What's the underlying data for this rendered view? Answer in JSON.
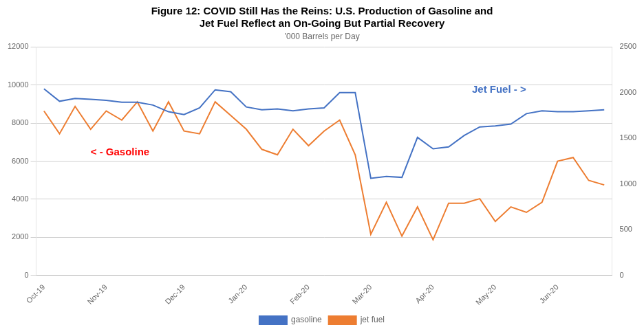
{
  "chart_data": {
    "type": "line",
    "title": [
      "Figure 12: COVID Still Has the Reins: U.S. Production of Gasoline and",
      "Jet Fuel Reflect an On-Going But Partial Recovery"
    ],
    "subtitle": "’000 Barrels per Day",
    "categories": [
      "Oct-19",
      null,
      null,
      null,
      "Nov-19",
      null,
      null,
      null,
      null,
      "Dec-19",
      null,
      null,
      null,
      "Jan-20",
      null,
      null,
      null,
      "Feb-20",
      null,
      null,
      null,
      "Mar-20",
      null,
      null,
      null,
      "Apr-20",
      null,
      null,
      null,
      "May-20",
      null,
      null,
      null,
      "Jun-20",
      null,
      null,
      null
    ],
    "series": [
      {
        "name": "gasoline",
        "color": "#4472C4",
        "values": [
          9800,
          9150,
          9300,
          9250,
          9200,
          9100,
          9100,
          8950,
          8600,
          8450,
          8800,
          9750,
          9650,
          8850,
          8700,
          8750,
          8650,
          8750,
          8800,
          9600,
          9600,
          5100,
          5200,
          5150,
          7250,
          6650,
          6750,
          7350,
          7800,
          7850,
          7950,
          8500,
          8650,
          8600,
          8600,
          8650,
          8700
        ]
      },
      {
        "name": "jet fuel",
        "color": "#ED7D31",
        "axis": "y2",
        "values": [
          1800,
          1550,
          1850,
          1600,
          1800,
          1700,
          1900,
          1580,
          1900,
          1580,
          1550,
          1900,
          1750,
          1600,
          1380,
          1320,
          1600,
          1420,
          1580,
          1700,
          1320,
          450,
          800,
          430,
          750,
          390,
          790,
          790,
          840,
          590,
          750,
          690,
          800,
          1250,
          1290,
          1040,
          990
        ]
      }
    ],
    "ylim": [
      0,
      12000
    ],
    "yticks": [
      0,
      2000,
      4000,
      6000,
      8000,
      10000,
      12000
    ],
    "y2lim": [
      0,
      2500
    ],
    "y2ticks": [
      0,
      500,
      1000,
      1500,
      2000,
      2500
    ],
    "grid": true,
    "legend": "bottom",
    "annotations": [
      {
        "text": "< - Gasoline",
        "color": "#FF0000",
        "x": 3.0,
        "y": 6300
      },
      {
        "text": "Jet Fuel - >",
        "color": "#4472C4",
        "x": 27.5,
        "y": 9600
      }
    ]
  }
}
